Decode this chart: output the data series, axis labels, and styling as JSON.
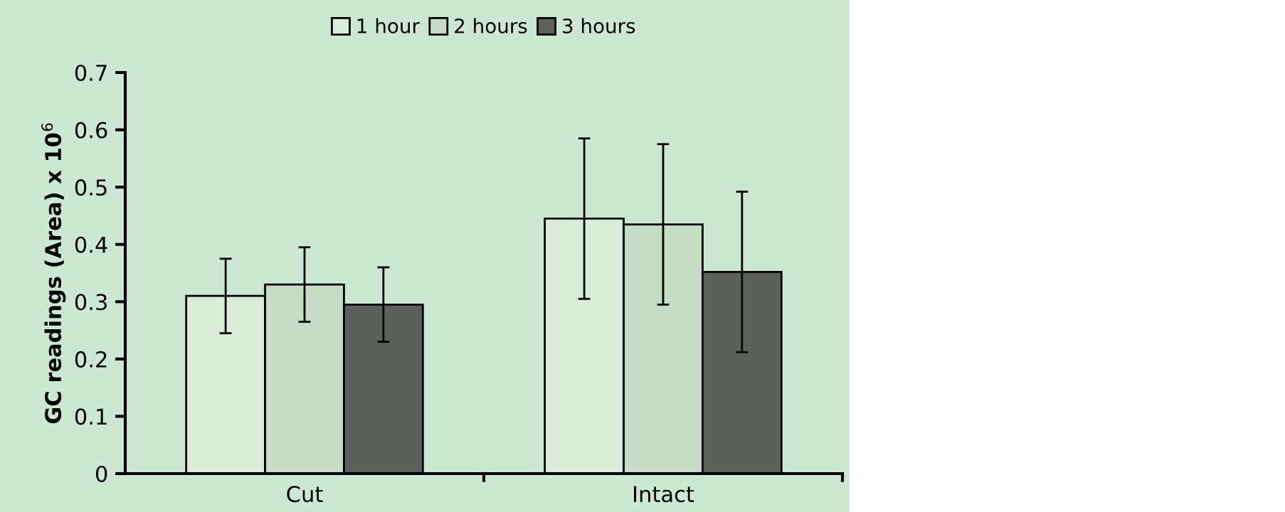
{
  "chart_data": {
    "type": "bar",
    "ylabel": "GC readings (Area) x 10$^{6}$",
    "categories": [
      "Cut",
      "Intact"
    ],
    "series": [
      {
        "name": "1 hour",
        "color": "#d8ecd8",
        "values": [
          0.31,
          0.445
        ],
        "errors": [
          0.065,
          0.14
        ]
      },
      {
        "name": "2 hours",
        "color": "#c4dcc4",
        "values": [
          0.33,
          0.435
        ],
        "errors": [
          0.065,
          0.14
        ]
      },
      {
        "name": "3 hours",
        "color": "#5a625a",
        "values": [
          0.295,
          0.352
        ],
        "errors": [
          0.065,
          0.14
        ]
      }
    ],
    "ylim": [
      0,
      0.7
    ],
    "yticks": [
      0,
      0.1,
      0.2,
      0.3,
      0.4,
      0.5,
      0.6,
      0.7
    ],
    "grid": false,
    "legend": "top"
  }
}
